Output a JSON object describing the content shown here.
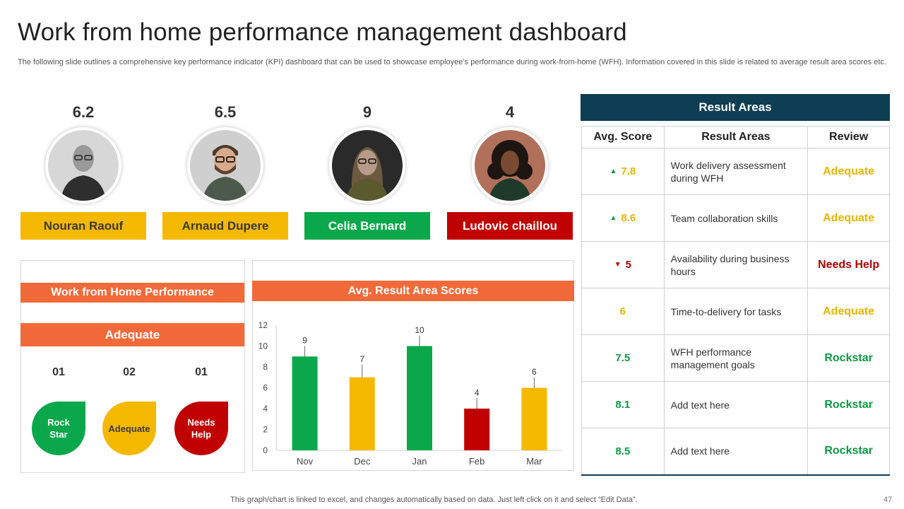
{
  "page": {
    "title": "Work from home performance management dashboard",
    "subtitle": "The following slide outlines a comprehensive key performance indicator (KPI) dashboard that can be used to showcase employee’s performance during work-from-home (WFH). Information covered in this slide is related to average result area scores etc.",
    "footnote": "This graph/chart is linked to excel,  and changes automatically based on data. Just left click on it and select “Edit Data”.",
    "page_number": "47"
  },
  "people": [
    {
      "score": "6.2",
      "name": "Nouran Raouf",
      "color": "#f5b800",
      "text_color": "#3a3a3a"
    },
    {
      "score": "6.5",
      "name": "Arnaud Dupere",
      "color": "#f5b800",
      "text_color": "#3a3a3a"
    },
    {
      "score": "9",
      "name": "Celia Bernard",
      "color": "#0aa84a",
      "text_color": "#ffffff"
    },
    {
      "score": "4",
      "name": "Ludovic chaillou",
      "color": "#c00000",
      "text_color": "#ffffff"
    }
  ],
  "wfh_panel": {
    "title": "Work from Home Performance",
    "status": "Adequate",
    "counts": [
      "01",
      "02",
      "01"
    ],
    "badges": [
      {
        "label": "Rock Star",
        "color": "#0aa84a",
        "text_color": "#ffffff"
      },
      {
        "label": "Adequate",
        "color": "#f5b800",
        "text_color": "#3a3a3a"
      },
      {
        "label": "Needs Help",
        "color": "#c00000",
        "text_color": "#ffffff"
      }
    ]
  },
  "chart_data": {
    "type": "bar",
    "title": "Avg. Result Area Scores",
    "categories": [
      "Nov",
      "Dec",
      "Jan",
      "Feb",
      "Mar"
    ],
    "values": [
      9,
      7,
      10,
      4,
      6
    ],
    "error_bars": [
      1,
      1.2,
      1,
      1,
      1
    ],
    "colors": [
      "#0aa84a",
      "#f5b800",
      "#0aa84a",
      "#c00000",
      "#f5b800"
    ],
    "ylim": [
      0,
      12
    ],
    "yticks": [
      0,
      2,
      4,
      6,
      8,
      10,
      12
    ],
    "xlabel": "",
    "ylabel": ""
  },
  "result_areas": {
    "header": "Result Areas",
    "columns": [
      "Avg. Score",
      "Result Areas",
      "Review"
    ],
    "rows": [
      {
        "trend": "up",
        "score": "7.8",
        "area": "Work delivery assessment during WFH",
        "review": "Adequate",
        "color": "#e6b400"
      },
      {
        "trend": "up",
        "score": "8.6",
        "area": "Team collaboration skills",
        "review": "Adequate",
        "color": "#e6b400"
      },
      {
        "trend": "down",
        "score": "5",
        "area": "Availability  during business hours",
        "review": "Needs Help",
        "color": "#b30000"
      },
      {
        "trend": "none",
        "score": "6",
        "area": "Time-to-delivery for tasks",
        "review": "Adequate",
        "color": "#e6b400"
      },
      {
        "trend": "none",
        "score": "7.5",
        "area": "WFH performance management goals",
        "review": "Rockstar",
        "color": "#0a9a44"
      },
      {
        "trend": "none",
        "score": "8.1",
        "area": "Add text here",
        "review": "Rockstar",
        "color": "#0a9a44"
      },
      {
        "trend": "none",
        "score": "8.5",
        "area": "Add text here",
        "review": "Rockstar",
        "color": "#0a9a44"
      }
    ]
  }
}
